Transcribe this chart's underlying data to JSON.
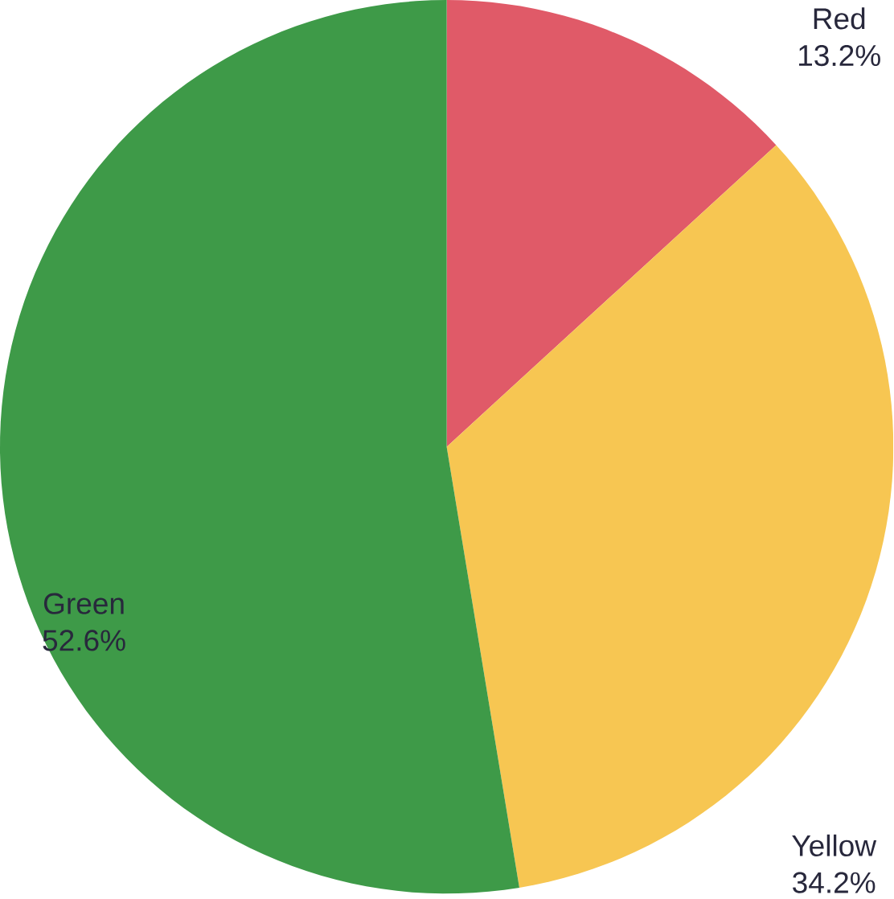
{
  "chart_data": {
    "type": "pie",
    "categories": [
      "Red",
      "Yellow",
      "Green"
    ],
    "values": [
      13.2,
      34.2,
      52.6
    ],
    "colors": [
      "#e05a68",
      "#f7c652",
      "#3e9a48"
    ],
    "value_labels": [
      "13.2%",
      "34.2%",
      "52.6%"
    ]
  }
}
